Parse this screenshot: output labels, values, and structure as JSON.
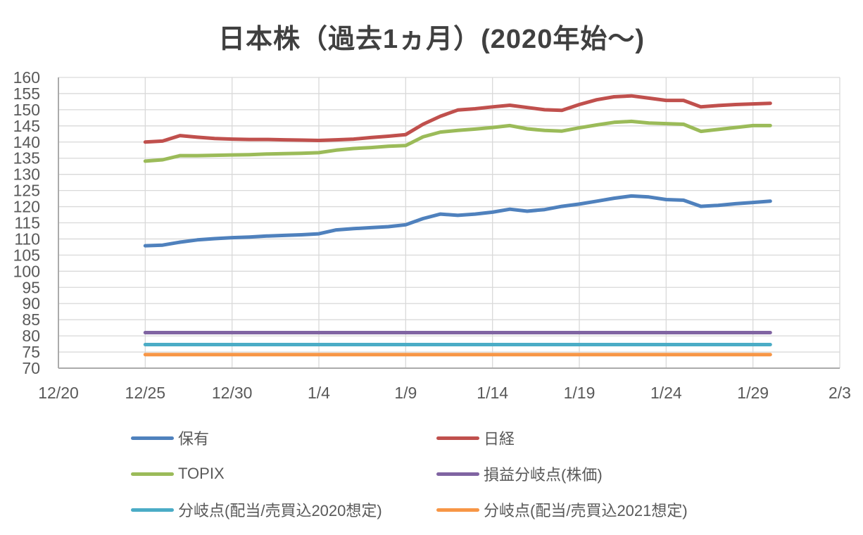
{
  "title": "日本株（過去1ヵ月）(2020年始〜)",
  "colors": {
    "background": "#FFFFFF",
    "gridline": "#D9D9D9",
    "axis_line": "#ABABAB",
    "tick_text": "#595959",
    "title_text": "#404040"
  },
  "chart_data": {
    "type": "line",
    "title": "日本株（過去1ヵ月）(2020年始〜)",
    "grid": true,
    "legend_position": "bottom",
    "x_axis": {
      "tick_labels": [
        "12/20",
        "12/25",
        "12/30",
        "1/4",
        "1/9",
        "1/14",
        "1/19",
        "1/24",
        "1/29",
        "2/3"
      ],
      "tick_day_positions": [
        0,
        5,
        10,
        15,
        20,
        25,
        30,
        35,
        40,
        45
      ],
      "range_days": [
        0,
        45
      ]
    },
    "y_axis": {
      "min": 70,
      "max": 160,
      "step": 5,
      "tick_labels": [
        "70",
        "75",
        "80",
        "85",
        "90",
        "95",
        "100",
        "105",
        "110",
        "115",
        "120",
        "125",
        "130",
        "135",
        "140",
        "145",
        "150",
        "155",
        "160"
      ]
    },
    "dates": [
      "12/25",
      "12/26",
      "12/27",
      "12/28",
      "12/29",
      "12/30",
      "12/31",
      "1/1",
      "1/2",
      "1/3",
      "1/4",
      "1/5",
      "1/6",
      "1/7",
      "1/8",
      "1/9",
      "1/10",
      "1/11",
      "1/12",
      "1/13",
      "1/14",
      "1/15",
      "1/16",
      "1/17",
      "1/18",
      "1/19",
      "1/20",
      "1/21",
      "1/22",
      "1/23",
      "1/24",
      "1/25",
      "1/26",
      "1/27",
      "1/28",
      "1/29",
      "1/30"
    ],
    "day_offsets": [
      5,
      6,
      7,
      8,
      9,
      10,
      11,
      12,
      13,
      14,
      15,
      16,
      17,
      18,
      19,
      20,
      21,
      22,
      23,
      24,
      25,
      26,
      27,
      28,
      29,
      30,
      31,
      32,
      33,
      34,
      35,
      36,
      37,
      38,
      39,
      40,
      41
    ],
    "series": [
      {
        "key": "holdings",
        "name": "保有",
        "color": "#4F81BD",
        "values": [
          107.9,
          108.1,
          109.0,
          109.7,
          110.1,
          110.4,
          110.6,
          110.9,
          111.1,
          111.3,
          111.6,
          112.8,
          113.2,
          113.5,
          113.8,
          114.4,
          116.3,
          117.7,
          117.3,
          117.7,
          118.3,
          119.2,
          118.6,
          119.1,
          120.1,
          120.8,
          121.7,
          122.6,
          123.3,
          123.0,
          122.2,
          122.0,
          120.1,
          120.4,
          120.9,
          121.3,
          121.7
        ]
      },
      {
        "key": "nikkei",
        "name": "日経",
        "color": "#C0504D",
        "values": [
          140.0,
          140.3,
          142.0,
          141.5,
          141.1,
          140.9,
          140.8,
          140.8,
          140.7,
          140.6,
          140.5,
          140.7,
          140.9,
          141.4,
          141.8,
          142.3,
          145.5,
          148.0,
          149.9,
          150.3,
          150.9,
          151.4,
          150.7,
          150.0,
          149.8,
          151.6,
          153.1,
          154.0,
          154.3,
          153.6,
          152.9,
          152.9,
          150.9,
          151.3,
          151.6,
          151.8,
          152.0
        ]
      },
      {
        "key": "topix",
        "name": "TOPIX",
        "color": "#9BBB59",
        "values": [
          134.1,
          134.5,
          135.8,
          135.8,
          135.9,
          136.0,
          136.1,
          136.3,
          136.4,
          136.5,
          136.7,
          137.5,
          138.0,
          138.3,
          138.7,
          138.9,
          141.6,
          143.1,
          143.6,
          144.0,
          144.5,
          145.1,
          144.1,
          143.6,
          143.4,
          144.4,
          145.3,
          146.1,
          146.4,
          145.9,
          145.7,
          145.5,
          143.3,
          143.9,
          144.5,
          145.1,
          145.1
        ]
      },
      {
        "key": "breakeven-price",
        "name": "損益分岐点(株価)",
        "color": "#8064A2",
        "constant": 81.0
      },
      {
        "key": "breakeven-2020",
        "name": "分岐点(配当/売買込2020想定)",
        "color": "#4BACC6",
        "constant": 77.3
      },
      {
        "key": "breakeven-2021",
        "name": "分岐点(配当/売買込2021想定)",
        "color": "#F79646",
        "constant": 74.2
      }
    ]
  }
}
